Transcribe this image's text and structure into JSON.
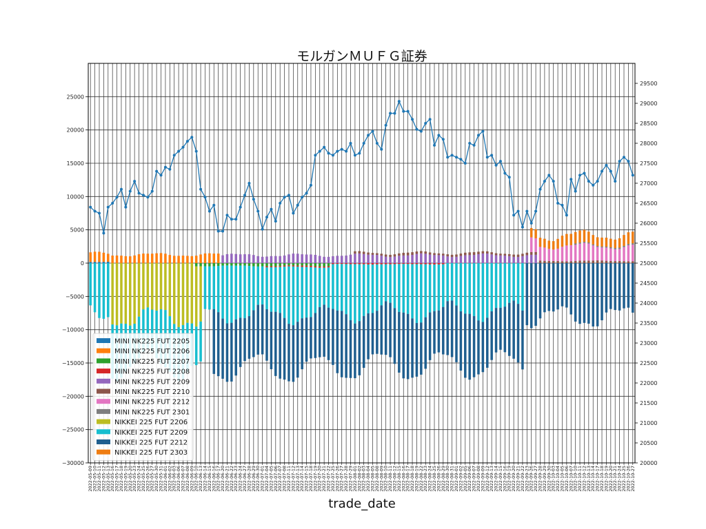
{
  "chart_data": {
    "type": "bar",
    "stacked": true,
    "title": "モルガンＭＵＦＧ証券",
    "xlabel": "trade_date",
    "ylabel": "",
    "ylim": [
      -30000,
      30000
    ],
    "yticks": [
      -30000,
      -25000,
      -20000,
      -15000,
      -10000,
      -5000,
      0,
      5000,
      10000,
      15000,
      20000,
      25000
    ],
    "y2lim": [
      20000,
      30000
    ],
    "y2ticks": [
      20000,
      20500,
      21000,
      21500,
      22000,
      22500,
      23000,
      23500,
      24000,
      24500,
      25000,
      25500,
      26000,
      26500,
      27000,
      27500,
      28000,
      28500,
      29000,
      29500
    ],
    "grid": true,
    "legend_position": "lower-left",
    "start_date": "2022-05-09",
    "end_date": "2022-11-04",
    "series": [
      {
        "name": "MINI NK225 FUT 2205",
        "color": "#1f77b4",
        "active": [
          0,
          4
        ],
        "level": 200
      },
      {
        "name": "MINI NK225 FUT 2206",
        "color": "#ff7f0e",
        "active": [
          0,
          29
        ],
        "level": 1500
      },
      {
        "name": "MINI NK225 FUT 2207",
        "color": "#2ca02c",
        "active": [
          24,
          54
        ],
        "level": -500
      },
      {
        "name": "MINI NK225 FUT 2208",
        "color": "#d62728",
        "active": [
          40,
          80
        ],
        "level": -200
      },
      {
        "name": "MINI NK225 FUT 2209",
        "color": "#9467bd",
        "active": [
          30,
          101
        ],
        "level": 1400
      },
      {
        "name": "MINI NK225 FUT 2210",
        "color": "#8c564b",
        "active": [
          60,
          124
        ],
        "level": 400
      },
      {
        "name": "MINI NK225 FUT 2212",
        "color": "#e377c2",
        "active": [
          100,
          128
        ],
        "level": 2600
      },
      {
        "name": "MINI NK225 FUT 2301",
        "color": "#7f7f7f",
        "active": [
          110,
          128
        ],
        "level": 200
      },
      {
        "name": "NIKKEI 225 FUT 2206",
        "color": "#bcbd22",
        "active": [
          5,
          25
        ],
        "level": -9500
      },
      {
        "name": "NIKKEI 225 FUT 2209",
        "color": "#17becf",
        "active": [
          0,
          98
        ],
        "level": -8500
      },
      {
        "name": "NIKKEI 225 FUT 2212",
        "color": "#1f5f8f",
        "active": [
          28,
          128
        ],
        "level": -9500
      },
      {
        "name": "NIKKEI 225 FUT 2303",
        "color": "#ef7d12",
        "active": [
          100,
          128
        ],
        "level": 1800
      }
    ],
    "line_series": {
      "name": "",
      "color": "#1f77b4",
      "axis": "right",
      "values": [
        26400,
        26300,
        26250,
        25750,
        26400,
        26500,
        26650,
        26850,
        26400,
        26800,
        27050,
        26750,
        26700,
        26650,
        26800,
        27300,
        27200,
        27400,
        27350,
        27700,
        27800,
        27900,
        28050,
        28150,
        27800,
        26850,
        26650,
        26300,
        26450,
        25800,
        25800,
        26200,
        26100,
        26100,
        26400,
        26700,
        27000,
        26600,
        26300,
        25850,
        26150,
        26350,
        26050,
        26500,
        26650,
        26700,
        26250,
        26450,
        26650,
        26750,
        26950,
        27700,
        27800,
        27900,
        27750,
        27700,
        27800,
        27850,
        27800,
        28000,
        27700,
        27750,
        28000,
        28200,
        28300,
        28000,
        27850,
        28450,
        28750,
        28750,
        29050,
        28800,
        28800,
        28600,
        28350,
        28300,
        28500,
        28600,
        27950,
        28200,
        28100,
        27650,
        27700,
        27650,
        27600,
        27500,
        28000,
        27950,
        28200,
        28300,
        27650,
        27700,
        27450,
        27550,
        27250,
        27150,
        26200,
        26300,
        25900,
        26300,
        26000,
        26300,
        26850,
        27050,
        27200,
        27050,
        26500,
        26450,
        26200,
        27100,
        26800,
        27200,
        27250,
        27050,
        26950,
        27050,
        27300,
        27450,
        27300,
        27050,
        27550,
        27650,
        27550,
        27200
      ]
    }
  }
}
